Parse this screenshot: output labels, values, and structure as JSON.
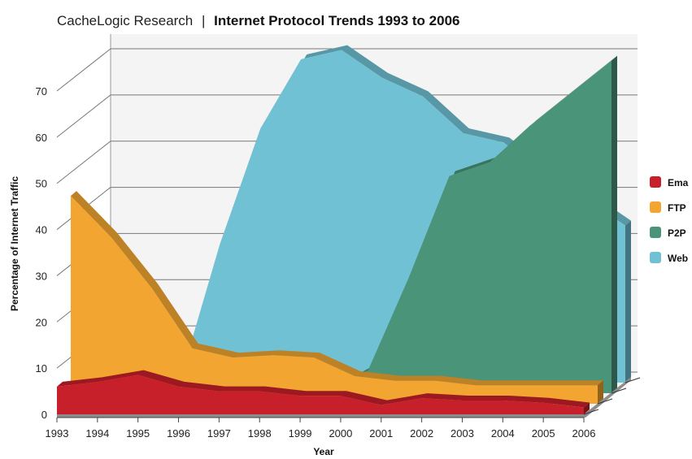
{
  "chart_data": {
    "type": "area",
    "title_prefix": "CacheLogic Research",
    "title_separator": "|",
    "title": "Internet Protocol Trends 1993 to 2006",
    "xlabel": "Year",
    "ylabel": "Percentage of Internet Traffic",
    "x": [
      1993,
      1994,
      1995,
      1996,
      1997,
      1998,
      1999,
      2000,
      2001,
      2002,
      2003,
      2004,
      2005,
      2006
    ],
    "ylim": [
      0,
      70
    ],
    "yticks": [
      0,
      10,
      20,
      30,
      40,
      50,
      60,
      70
    ],
    "grid": true,
    "legend_position": "right",
    "series": [
      {
        "name": "Ema",
        "color": "#c8202b",
        "values": [
          6,
          7,
          8.5,
          6,
          5,
          5,
          4,
          4,
          2,
          3.5,
          3,
          3,
          2.5,
          1.5
        ]
      },
      {
        "name": "FTP",
        "color": "#f2a531",
        "values": [
          45,
          36,
          25,
          12,
          10,
          10.5,
          10,
          6,
          5,
          5,
          4,
          4,
          4,
          4
        ]
      },
      {
        "name": "P2P",
        "color": "#4a9479",
        "values": [
          0,
          0,
          0,
          0,
          0,
          0,
          0,
          5,
          25,
          47,
          50,
          58,
          65,
          72
        ]
      },
      {
        "name": "Web",
        "color": "#71c1d4",
        "values": [
          0,
          0,
          0,
          30,
          55,
          70,
          72,
          66,
          62,
          54,
          52,
          45,
          40,
          34
        ]
      }
    ]
  }
}
